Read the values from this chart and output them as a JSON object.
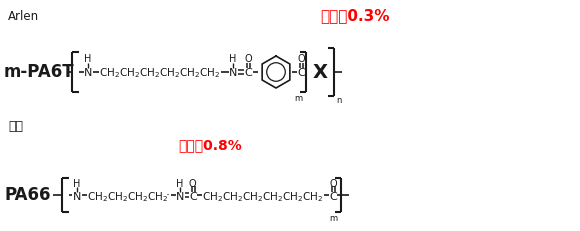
{
  "bg_color": "#ffffff",
  "title_arlen": "Arlen",
  "title_hikaku": "比較",
  "label_mpa6t": "m-PA6T",
  "label_pa66": "PA66",
  "absorption_1": "吸水率0.3%",
  "absorption_2": "吸水率0.8%",
  "absorption_color": "#ff0000",
  "text_color": "#1a1a1a",
  "figsize": [
    5.8,
    2.31
  ],
  "dpi": 100
}
